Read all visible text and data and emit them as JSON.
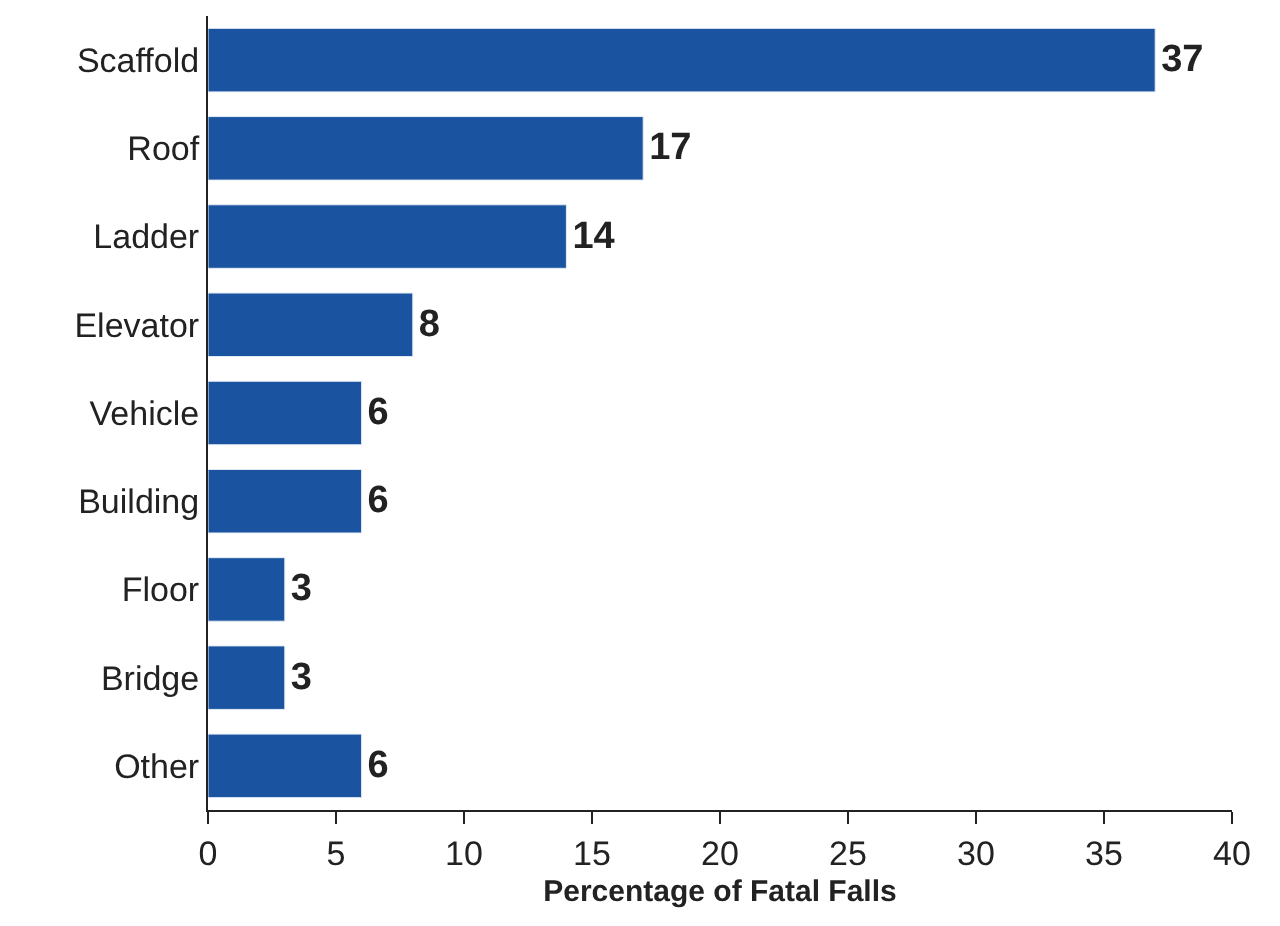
{
  "chart_data": {
    "type": "bar",
    "orientation": "horizontal",
    "xlabel": "Percentage of Fatal Falls",
    "categories": [
      "Scaffold",
      "Roof",
      "Ladder",
      "Elevator",
      "Vehicle",
      "Building",
      "Floor",
      "Bridge",
      "Other"
    ],
    "values": [
      37,
      17,
      14,
      8,
      6,
      6,
      3,
      3,
      6
    ],
    "color": "#1a54a0",
    "xlim": [
      0,
      40
    ],
    "xticks": [
      0,
      5,
      10,
      15,
      20,
      25,
      30,
      35,
      40
    ],
    "data_labels": true
  }
}
